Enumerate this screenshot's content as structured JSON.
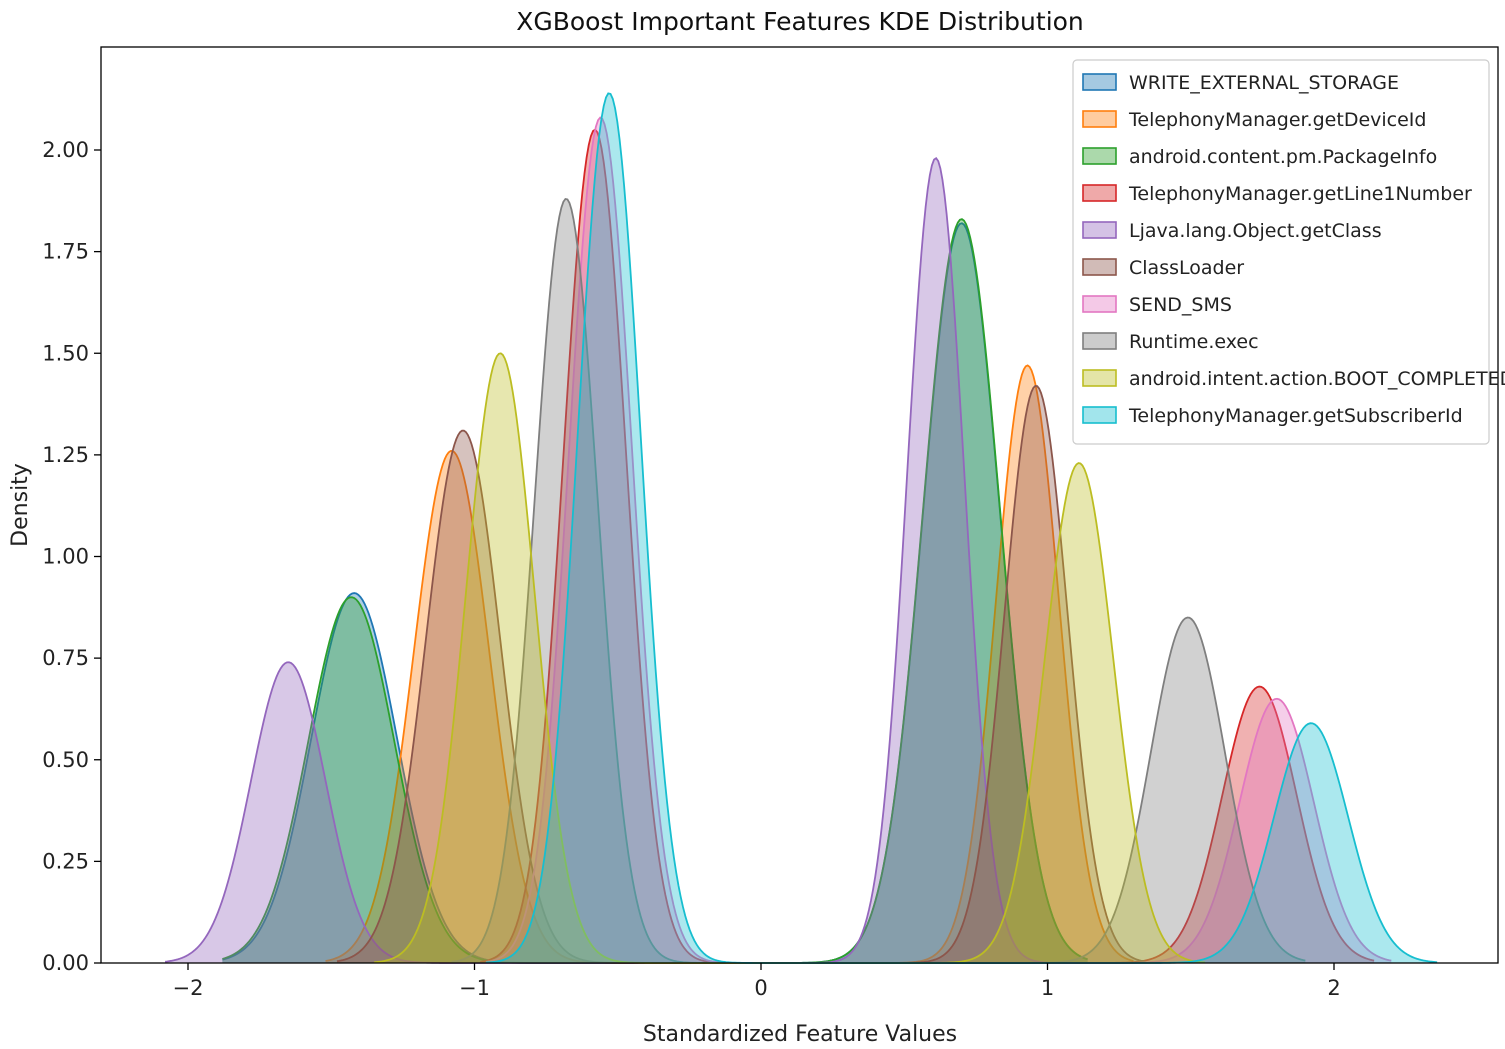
{
  "chart_data": {
    "type": "area",
    "title": "XGBoost Important Features KDE Distribution",
    "xlabel": "Standardized Feature Values",
    "ylabel": "Density",
    "xlim": [
      -2.3,
      2.57
    ],
    "ylim": [
      0,
      2.3
    ],
    "xticks": [
      -2,
      -1,
      0,
      1,
      2
    ],
    "xtick_labels": [
      "−2",
      "−1",
      "0",
      "1",
      "2"
    ],
    "yticks": [
      0.0,
      0.25,
      0.5,
      0.75,
      1.0,
      1.25,
      1.5,
      1.75,
      2.0
    ],
    "ytick_labels": [
      "0.00",
      "0.25",
      "0.50",
      "0.75",
      "1.00",
      "1.25",
      "1.50",
      "1.75",
      "2.00"
    ],
    "grid": false,
    "legend_position": "top-right",
    "series": [
      {
        "name": "WRITE_EXTERNAL_STORAGE",
        "color": "#1f77b4",
        "modes": [
          [
            -1.42,
            0.91,
            0.15
          ],
          [
            0.7,
            1.82,
            0.135
          ]
        ],
        "x_range": [
          -1.88,
          1.14
        ]
      },
      {
        "name": "TelephonyManager.getDeviceId",
        "color": "#ff7f0e",
        "modes": [
          [
            -1.08,
            1.26,
            0.132
          ],
          [
            0.93,
            1.47,
            0.11
          ]
        ],
        "x_range": [
          -1.52,
          1.3
        ]
      },
      {
        "name": "android.content.pm.PackageInfo",
        "color": "#2ca02c",
        "modes": [
          [
            -1.43,
            0.9,
            0.15
          ],
          [
            0.7,
            1.83,
            0.135
          ]
        ],
        "x_range": [
          -1.88,
          1.14
        ]
      },
      {
        "name": "TelephonyManager.getLine1Number",
        "color": "#d62728",
        "modes": [
          [
            -0.58,
            2.05,
            0.11
          ],
          [
            1.74,
            0.68,
            0.13
          ]
        ],
        "x_range": [
          -0.98,
          2.14
        ]
      },
      {
        "name": "Ljava.lang.Object.getClass",
        "color": "#9467bd",
        "modes": [
          [
            -1.65,
            0.74,
            0.13
          ],
          [
            0.61,
            1.98,
            0.1
          ]
        ],
        "x_range": [
          -2.08,
          1.0
        ]
      },
      {
        "name": "ClassLoader",
        "color": "#8c564b",
        "modes": [
          [
            -1.04,
            1.31,
            0.13
          ],
          [
            0.96,
            1.42,
            0.11
          ]
        ],
        "x_range": [
          -1.48,
          1.34
        ]
      },
      {
        "name": "SEND_SMS",
        "color": "#e377c2",
        "modes": [
          [
            -0.56,
            2.08,
            0.11
          ],
          [
            1.8,
            0.65,
            0.13
          ]
        ],
        "x_range": [
          -0.96,
          2.2
        ]
      },
      {
        "name": "Runtime.exec",
        "color": "#7f7f7f",
        "modes": [
          [
            -0.68,
            1.88,
            0.11
          ],
          [
            1.49,
            0.85,
            0.13
          ]
        ],
        "x_range": [
          -1.08,
          1.9
        ]
      },
      {
        "name": "android.intent.action.BOOT_COMPLETED",
        "color": "#bcbd22",
        "modes": [
          [
            -0.91,
            1.5,
            0.12
          ],
          [
            1.11,
            1.23,
            0.12
          ]
        ],
        "x_range": [
          -1.35,
          1.55
        ]
      },
      {
        "name": "TelephonyManager.getSubscriberId",
        "color": "#17becf",
        "modes": [
          [
            -0.53,
            2.14,
            0.11
          ],
          [
            1.92,
            0.59,
            0.13
          ]
        ],
        "x_range": [
          -0.96,
          2.36
        ]
      }
    ]
  }
}
